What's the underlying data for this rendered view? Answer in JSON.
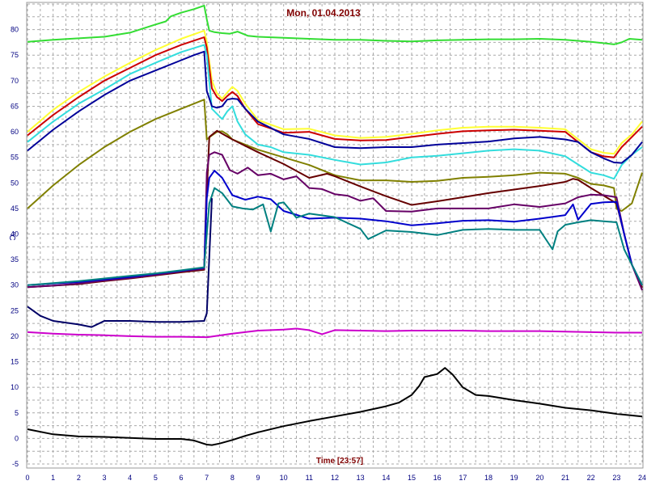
{
  "chart_data": {
    "type": "line",
    "title": "Mon, 01.04.2013",
    "xlabel": "Time [23:57]",
    "ylabel": "°C",
    "xlim": [
      0,
      24
    ],
    "ylim": [
      -5,
      85
    ],
    "grid": true,
    "x_ticks": [
      "0",
      "1",
      "2",
      "3",
      "4",
      "5",
      "6",
      "7",
      "8",
      "9",
      "10",
      "11",
      "12",
      "13",
      "14",
      "15",
      "16",
      "17",
      "18",
      "19",
      "20",
      "21",
      "22",
      "23",
      "24"
    ],
    "y_ticks": [
      "-5",
      "0",
      "5",
      "10",
      "15",
      "20",
      "25",
      "30",
      "35",
      "40",
      "45",
      "50",
      "55",
      "60",
      "65",
      "70",
      "75",
      "80"
    ],
    "series": [
      {
        "color": "#33dd33",
        "x": [
          0,
          1,
          2,
          3,
          4,
          5,
          5.4,
          5.6,
          6,
          6.5,
          6.9,
          7,
          7.1,
          7.3,
          7.6,
          7.9,
          8.2,
          8.6,
          9,
          10,
          11,
          12,
          13,
          14,
          15,
          16,
          17,
          18,
          19,
          20,
          21,
          22,
          22.6,
          22.9,
          23.2,
          23.5,
          24
        ],
        "y": [
          77.6,
          78,
          78.3,
          78.6,
          79.4,
          81,
          81.6,
          82.6,
          83.3,
          84,
          84.7,
          82,
          79.8,
          79.5,
          79.3,
          79.2,
          79.6,
          78.8,
          78.6,
          78.4,
          78.2,
          78,
          78,
          77.8,
          77.7,
          77.9,
          78,
          78.1,
          78.1,
          78.2,
          78,
          77.6,
          77.3,
          77.1,
          77.5,
          78.2,
          78
        ]
      },
      {
        "color": "#ffff33",
        "x": [
          0,
          1,
          2,
          3,
          4,
          5,
          6,
          6.9,
          7,
          7.2,
          7.4,
          7.6,
          7.8,
          8,
          8.2,
          8.5,
          9,
          10,
          11,
          12,
          13,
          14,
          15,
          16,
          17,
          18,
          19,
          20,
          21,
          22,
          22.5,
          22.9,
          23.2,
          23.6,
          24
        ],
        "y": [
          60,
          64.3,
          67.8,
          70.8,
          73.5,
          76,
          78.2,
          79.8,
          77.6,
          70,
          67.5,
          66.5,
          67.7,
          68.8,
          68,
          65.5,
          62.3,
          60.5,
          60.6,
          59.3,
          58.8,
          59,
          59.6,
          60.3,
          60.8,
          61,
          61,
          60.8,
          60.5,
          56.6,
          55.9,
          55.7,
          57.8,
          59.5,
          62
        ]
      },
      {
        "color": "#cc0000",
        "x": [
          0,
          1,
          2,
          3,
          4,
          5,
          6,
          6.9,
          7,
          7.2,
          7.4,
          7.6,
          7.8,
          8,
          8.2,
          8.5,
          9,
          10,
          11,
          12,
          13,
          14,
          15,
          16,
          17,
          18,
          19,
          20,
          21,
          22,
          22.5,
          22.9,
          23.2,
          23.6,
          24
        ],
        "y": [
          59.3,
          63.3,
          66.8,
          70,
          72.5,
          75,
          77,
          78.5,
          76.5,
          68.5,
          66.8,
          66,
          67,
          67.8,
          67,
          64.5,
          61.5,
          59.8,
          60,
          58.6,
          58.3,
          58.4,
          59,
          59.6,
          60.1,
          60.3,
          60.4,
          60.2,
          60,
          56,
          55.2,
          55,
          57,
          59,
          61
        ]
      },
      {
        "color": "#33dddd",
        "x": [
          0,
          1,
          2,
          3,
          4,
          5,
          6,
          6.9,
          7,
          7.2,
          7.4,
          7.6,
          7.8,
          8,
          8.2,
          8.5,
          9,
          9.5,
          10,
          11,
          12,
          13,
          14,
          15,
          16,
          17,
          18,
          19,
          20,
          21,
          22,
          22.5,
          22.9,
          23.2,
          23.6,
          24
        ],
        "y": [
          58,
          62,
          65.5,
          68.3,
          71.3,
          73.5,
          75.6,
          77,
          75,
          64.5,
          63.5,
          62.5,
          64,
          65,
          62,
          59.5,
          57.5,
          57,
          56,
          55.5,
          54.5,
          53.6,
          54,
          55,
          55.3,
          55.8,
          56.3,
          56.6,
          56.3,
          55.2,
          52,
          51.5,
          50.8,
          53.5,
          55.5,
          57
        ]
      },
      {
        "color": "#000099",
        "x": [
          0,
          1,
          2,
          3,
          4,
          5,
          6,
          6.5,
          6.9,
          7,
          7.2,
          7.4,
          7.6,
          7.8,
          8,
          8.2,
          8.5,
          9,
          10,
          11,
          12,
          13,
          14,
          15,
          16,
          17,
          18,
          19,
          20,
          21,
          21.5,
          22,
          22.5,
          22.9,
          23.2,
          23.6,
          24
        ],
        "y": [
          56.3,
          60.4,
          64,
          67.2,
          70,
          72,
          74,
          75,
          75.7,
          68,
          65,
          64.7,
          65,
          66.3,
          66.5,
          66.4,
          64.5,
          62,
          59.5,
          58.6,
          57,
          56.8,
          57,
          57,
          57.5,
          57.8,
          58.1,
          58.7,
          59,
          58.5,
          58,
          56,
          54.8,
          54,
          53.9,
          55.5,
          58
        ]
      },
      {
        "color": "#808000",
        "x": [
          0,
          1,
          2,
          3,
          4,
          5,
          6,
          6.9,
          7,
          7.2,
          7.4,
          7.6,
          7.8,
          8,
          8.5,
          9,
          10,
          11,
          12,
          13,
          14,
          15,
          16,
          17,
          18,
          19,
          20,
          21,
          21.5,
          22,
          22.5,
          22.9,
          23,
          23.2,
          23.6,
          24
        ],
        "y": [
          45,
          49.5,
          53.5,
          57,
          60,
          62.5,
          64.5,
          66.3,
          58.5,
          59.3,
          60,
          60.1,
          59.5,
          58.5,
          57.5,
          56.5,
          55,
          53.5,
          51.5,
          50.5,
          50.5,
          50.2,
          50.4,
          51,
          51.2,
          51.5,
          52,
          51.8,
          51,
          49.8,
          49.5,
          49,
          45,
          44.5,
          46,
          52
        ]
      },
      {
        "color": "#660000",
        "x": [
          0,
          1,
          2,
          3,
          4,
          5,
          6,
          6.9,
          7,
          7.1,
          7.4,
          8,
          9,
          10,
          11,
          11.7,
          12,
          13,
          14,
          15,
          16,
          17,
          18,
          19,
          20,
          21,
          21.3,
          21.5,
          22,
          22.5,
          23,
          23.3,
          23.6,
          24
        ],
        "y": [
          29.6,
          29.9,
          30.2,
          30.8,
          31.3,
          31.9,
          32.5,
          33,
          48,
          59,
          60.2,
          58.5,
          56,
          53.7,
          51,
          51.8,
          51.3,
          49.3,
          47.4,
          45.7,
          46.4,
          47.2,
          48,
          48.7,
          49.4,
          50.2,
          50.8,
          50.6,
          49,
          47.5,
          46,
          40,
          34,
          29.5
        ]
      },
      {
        "color": "#660066",
        "x": [
          0,
          1,
          2,
          3,
          4,
          5,
          6,
          6.9,
          7,
          7.1,
          7.3,
          7.6,
          7.9,
          8.2,
          8.6,
          9,
          9.5,
          10,
          10.5,
          11,
          11.5,
          12,
          12.5,
          13,
          13.5,
          14,
          15,
          16,
          17,
          18,
          19,
          20,
          21,
          21.5,
          22,
          22.5,
          23,
          23.3,
          23.6,
          24
        ],
        "y": [
          29.6,
          29.9,
          30.3,
          30.9,
          31.4,
          32,
          32.7,
          33.2,
          52,
          55.5,
          56,
          55.5,
          52.5,
          51.8,
          53,
          51.5,
          51.8,
          50.7,
          51.3,
          49,
          48.8,
          47.8,
          47.5,
          46.5,
          47,
          44.5,
          44.4,
          45,
          45,
          45,
          45.8,
          45.3,
          46,
          47.2,
          47.7,
          47.6,
          47.2,
          40,
          34,
          29
        ]
      },
      {
        "color": "#0000cc",
        "x": [
          0,
          1,
          2,
          3,
          4,
          5,
          6,
          6.9,
          7,
          7.1,
          7.3,
          7.6,
          8,
          8.5,
          9,
          9.5,
          10,
          11,
          12,
          13,
          14,
          15,
          16,
          17,
          18,
          19,
          20,
          21,
          21.3,
          21.5,
          22,
          22.5,
          23,
          23.3,
          23.6,
          24
        ],
        "y": [
          30,
          30.3,
          30.6,
          31.1,
          31.6,
          32.2,
          32.8,
          33.4,
          47,
          51,
          52.4,
          51,
          47.6,
          46.7,
          47.3,
          46.8,
          44.5,
          43,
          43.2,
          43,
          42.5,
          41.7,
          42.1,
          42.6,
          42.7,
          42.4,
          43,
          43.7,
          45.8,
          42.8,
          45.9,
          46.2,
          46.3,
          40,
          34,
          30
        ]
      },
      {
        "color": "#008080",
        "x": [
          0,
          1,
          2,
          3,
          4,
          5,
          6,
          6.9,
          7,
          7.1,
          7.3,
          7.6,
          8,
          8.4,
          8.8,
          9.2,
          9.5,
          9.8,
          10,
          10.5,
          11,
          12,
          13,
          13.3,
          14,
          15,
          16,
          17,
          18,
          19,
          20,
          20.5,
          20.7,
          21,
          21.5,
          22,
          22.5,
          23,
          23.3,
          23.6,
          24
        ],
        "y": [
          30,
          30.4,
          30.8,
          31.3,
          31.8,
          32.3,
          32.9,
          33.5,
          40,
          46,
          49,
          48,
          45.4,
          45,
          44.8,
          45.8,
          40.5,
          46,
          46.2,
          43.2,
          44,
          43.3,
          41,
          39,
          40.7,
          40.4,
          39.8,
          40.8,
          41,
          40.8,
          40.8,
          37,
          40.5,
          41.8,
          42.3,
          42.7,
          42.5,
          42.3,
          37,
          34,
          30
        ]
      },
      {
        "color": "#cc00cc",
        "x": [
          0,
          1,
          2,
          3,
          4,
          5,
          6,
          7,
          8,
          9,
          10,
          10.5,
          11,
          11.5,
          12,
          13,
          14,
          15,
          16,
          17,
          18,
          19,
          20,
          21,
          22,
          23,
          24
        ],
        "y": [
          20.8,
          20.5,
          20.3,
          20.2,
          20,
          19.9,
          19.9,
          19.8,
          20.5,
          21.1,
          21.3,
          21.5,
          21.2,
          20.4,
          21.2,
          21.1,
          21,
          21.1,
          21.1,
          21.1,
          21,
          21,
          21,
          20.9,
          20.8,
          20.7,
          20.7
        ]
      },
      {
        "color": "#000066",
        "x": [
          0,
          0.5,
          1,
          2,
          2.5,
          3,
          4,
          5,
          6,
          6.9,
          7,
          7.2
        ],
        "y": [
          25.8,
          24,
          23,
          22.3,
          21.8,
          23,
          23,
          22.8,
          22.8,
          23,
          24.5,
          47
        ]
      },
      {
        "color": "#000000",
        "x": [
          0,
          1,
          2,
          3,
          4,
          5,
          6,
          6.5,
          7,
          7.2,
          7.5,
          8,
          8.5,
          9,
          10,
          11,
          12,
          13,
          14,
          14.5,
          15,
          15.3,
          15.5,
          16,
          16.3,
          16.6,
          17,
          17.5,
          18,
          19,
          20,
          21,
          22,
          23,
          24
        ],
        "y": [
          1.8,
          0.8,
          0.4,
          0.3,
          0.1,
          -0.1,
          -0.1,
          -0.4,
          -1.2,
          -1.3,
          -1,
          -0.3,
          0.5,
          1.2,
          2.4,
          3.4,
          4.3,
          5.2,
          6.3,
          7,
          8.5,
          10.3,
          12,
          12.6,
          13.8,
          12.5,
          10,
          8.5,
          8.3,
          7.5,
          6.8,
          6,
          5.5,
          4.8,
          4.3
        ]
      }
    ]
  }
}
